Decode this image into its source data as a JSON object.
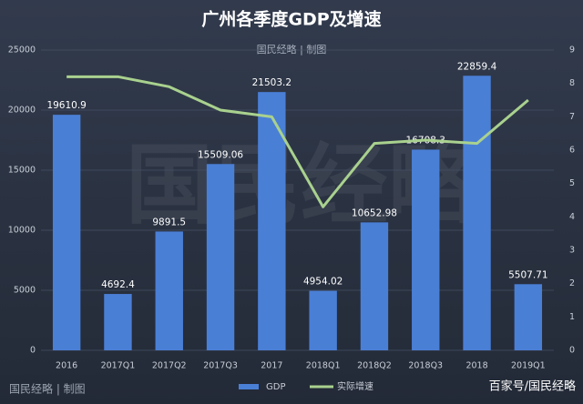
{
  "chart_data": {
    "type": "bar_line",
    "title": "广州各季度GDP及增速",
    "subtitle": "国民经略 | 制图",
    "watermark": "国民经略",
    "footer_left": "国民经略 | 制图",
    "footer_right": "百家号/国民经略",
    "categories": [
      "2016",
      "2017Q1",
      "2017Q2",
      "2017Q3",
      "2017",
      "2018Q1",
      "2018Q2",
      "2018Q3",
      "2018",
      "2019Q1"
    ],
    "series": [
      {
        "name": "GDP",
        "type": "bar",
        "color": "#4a7fd6",
        "values": [
          19610.9,
          4692.4,
          9891.5,
          15509.06,
          21503.2,
          4954.02,
          10652.98,
          16708.3,
          22859.4,
          5507.71
        ]
      },
      {
        "name": "实际增速",
        "type": "line",
        "axis": "y2",
        "color": "#a9d18e",
        "values": [
          8.2,
          8.2,
          7.9,
          7.2,
          7.0,
          4.3,
          6.2,
          6.3,
          6.2,
          7.5
        ]
      }
    ],
    "ylim": [
      0,
      25000
    ],
    "yticks": [
      0,
      5000,
      10000,
      15000,
      20000,
      25000
    ],
    "y2lim": [
      0,
      9
    ],
    "y2ticks": [
      0,
      1,
      2,
      3,
      4,
      5,
      6,
      7,
      8,
      9
    ],
    "grid": true
  }
}
